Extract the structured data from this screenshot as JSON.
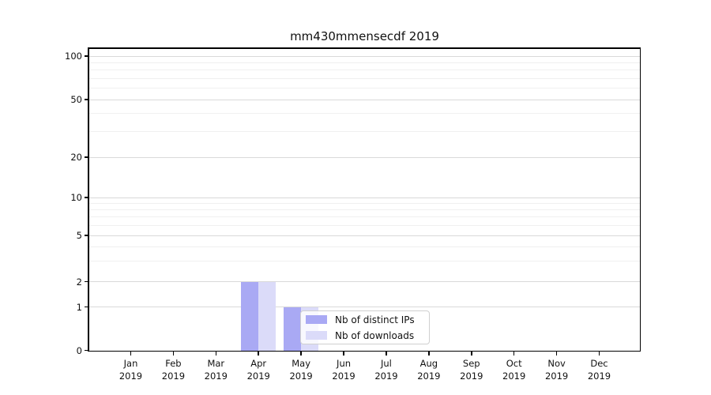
{
  "chart_data": {
    "type": "bar",
    "title": "mm430mmensecdf 2019",
    "categories": [
      "Jan",
      "Feb",
      "Mar",
      "Apr",
      "May",
      "Jun",
      "Jul",
      "Aug",
      "Sep",
      "Oct",
      "Nov",
      "Dec"
    ],
    "category_year": "2019",
    "series": [
      {
        "name": "Nb of distinct IPs",
        "color": "#a9a9f4",
        "values": [
          0,
          0,
          0,
          2,
          1,
          0,
          0,
          0,
          0,
          0,
          0,
          0
        ]
      },
      {
        "name": "Nb of downloads",
        "color": "#dbdbf9",
        "values": [
          0,
          0,
          0,
          2,
          1,
          0,
          0,
          0,
          0,
          0,
          0,
          0
        ]
      }
    ],
    "yscale": "symlog",
    "ylim": [
      0,
      110
    ],
    "y_ticks": [
      0,
      1,
      2,
      5,
      10,
      20,
      50,
      100
    ],
    "y_minor_ticks": [
      3,
      4,
      6,
      7,
      8,
      9,
      30,
      40,
      60,
      70,
      80,
      90
    ],
    "grid": "horizontal",
    "legend": {
      "position": "lower-center",
      "entries": [
        "Nb of distinct IPs",
        "Nb of downloads"
      ]
    }
  }
}
